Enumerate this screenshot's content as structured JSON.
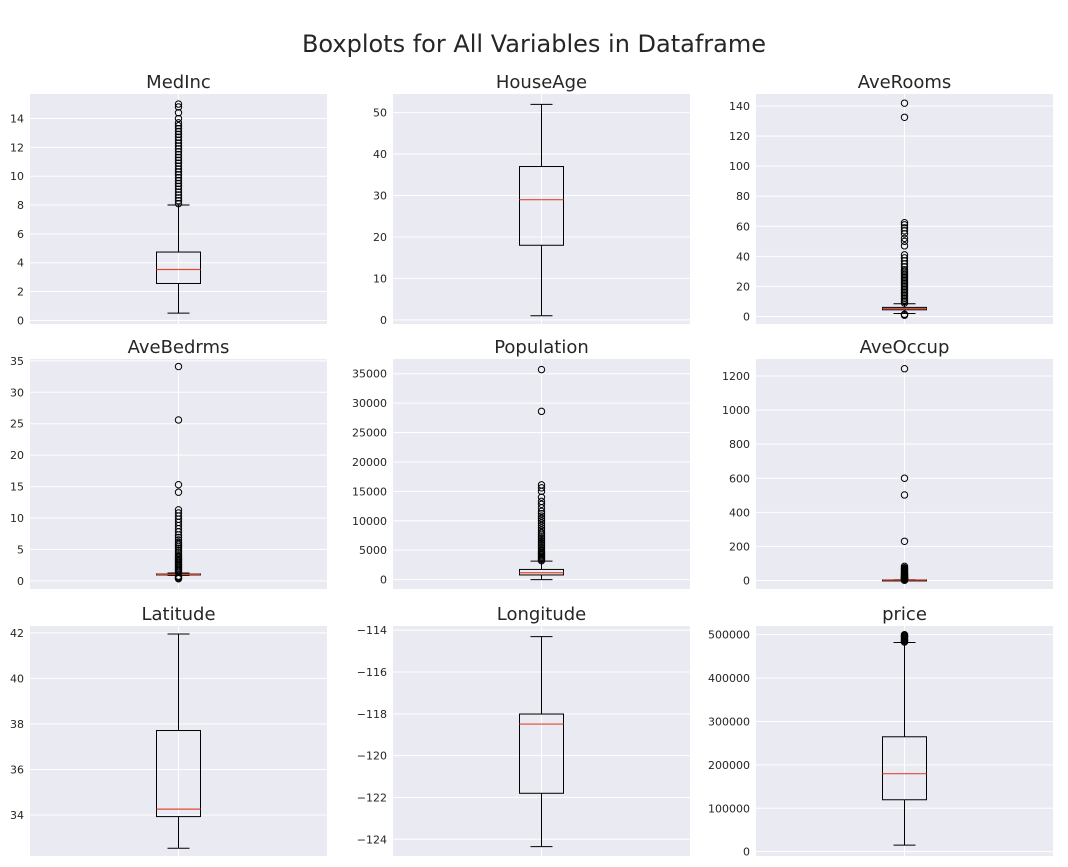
{
  "figure_title": "Boxplots for All Variables in Dataframe",
  "colors": {
    "panel_bg": "#eaeaf2",
    "grid": "#ffffff",
    "box": "#000000",
    "median": "#e24a33"
  },
  "chart_data": [
    {
      "type": "box",
      "title": "MedInc",
      "ylim": [
        -0.25,
        15.7
      ],
      "ticks": [
        0,
        2,
        4,
        6,
        8,
        10,
        12,
        14
      ],
      "tick_labels": [
        "0",
        "2",
        "4",
        "6",
        "8",
        "10",
        "12",
        "14"
      ],
      "whisker_low": 0.5,
      "q1": 2.56,
      "median": 3.53,
      "q3": 4.74,
      "whisker_high": 8.0,
      "outliers": [
        8.1,
        8.3,
        8.5,
        8.7,
        8.9,
        9.1,
        9.3,
        9.5,
        9.7,
        9.9,
        10.1,
        10.3,
        10.5,
        10.7,
        10.9,
        11.1,
        11.3,
        11.5,
        11.7,
        11.9,
        12.1,
        12.3,
        12.5,
        12.7,
        12.9,
        13.1,
        13.3,
        13.5,
        13.7,
        14.0,
        14.4,
        14.8,
        15.0
      ]
    },
    {
      "type": "box",
      "title": "HouseAge",
      "ylim": [
        -1,
        54.5
      ],
      "ticks": [
        0,
        10,
        20,
        30,
        40,
        50
      ],
      "tick_labels": [
        "0",
        "10",
        "20",
        "30",
        "40",
        "50"
      ],
      "whisker_low": 1,
      "q1": 18,
      "median": 29,
      "q3": 37,
      "whisker_high": 52,
      "outliers": []
    },
    {
      "type": "box",
      "title": "AveRooms",
      "ylim": [
        -5,
        148
      ],
      "ticks": [
        0,
        20,
        40,
        60,
        80,
        100,
        120,
        140
      ],
      "tick_labels": [
        "0",
        "20",
        "40",
        "60",
        "80",
        "100",
        "120",
        "140"
      ],
      "whisker_low": 2.0,
      "q1": 4.44,
      "median": 5.23,
      "q3": 6.05,
      "whisker_high": 8.45,
      "outliers": [
        0.85,
        1.13,
        1.5,
        9,
        10,
        11,
        12,
        13,
        14,
        15,
        16,
        17,
        18,
        19,
        20,
        21,
        22,
        23,
        24,
        25,
        26,
        27,
        28,
        29,
        30,
        31,
        33,
        35,
        37,
        39,
        41,
        47,
        50,
        52,
        55,
        57,
        59,
        61,
        62.4,
        132.5,
        141.9
      ]
    },
    {
      "type": "box",
      "title": "AveBedrms",
      "ylim": [
        -1.3,
        35.3
      ],
      "ticks": [
        0,
        5,
        10,
        15,
        20,
        25,
        30,
        35
      ],
      "tick_labels": [
        "0",
        "5",
        "10",
        "15",
        "20",
        "25",
        "30",
        "35"
      ],
      "whisker_low": 0.87,
      "q1": 1.006,
      "median": 1.049,
      "q3": 1.1,
      "whisker_high": 1.24,
      "outliers": [
        0.33,
        0.45,
        0.6,
        0.75,
        1.4,
        1.6,
        1.8,
        2.0,
        2.2,
        2.4,
        2.6,
        2.8,
        3.0,
        3.2,
        3.4,
        3.6,
        3.8,
        4.0,
        4.3,
        4.6,
        4.9,
        5.2,
        5.5,
        5.8,
        6.1,
        6.5,
        6.9,
        7.3,
        7.8,
        8.3,
        8.8,
        9.3,
        9.8,
        10.3,
        10.8,
        11.3,
        14.1,
        15.3,
        25.6,
        34.1
      ]
    },
    {
      "type": "box",
      "title": "Population",
      "ylim": [
        -1600,
        37500
      ],
      "ticks": [
        0,
        5000,
        10000,
        15000,
        20000,
        25000,
        30000,
        35000
      ],
      "tick_labels": [
        "0",
        "5000",
        "10000",
        "15000",
        "20000",
        "25000",
        "30000",
        "35000"
      ],
      "whisker_low": 3,
      "q1": 787,
      "median": 1166,
      "q3": 1725,
      "whisker_high": 3132,
      "outliers": [
        3200,
        3400,
        3600,
        3800,
        4000,
        4200,
        4400,
        4600,
        4800,
        5000,
        5300,
        5600,
        5900,
        6200,
        6500,
        6800,
        7100,
        7400,
        7700,
        8000,
        8400,
        8800,
        9200,
        9600,
        10000,
        10400,
        10800,
        11200,
        11600,
        12200,
        12800,
        13300,
        14000,
        15000,
        15600,
        16100,
        28600,
        35700
      ]
    },
    {
      "type": "box",
      "title": "AveOccup",
      "ylim": [
        -50,
        1300
      ],
      "ticks": [
        0,
        200,
        400,
        600,
        800,
        1000,
        1200
      ],
      "tick_labels": [
        "0",
        "200",
        "400",
        "600",
        "800",
        "1000",
        "1200"
      ],
      "whisker_low": 1.2,
      "q1": 2.43,
      "median": 2.82,
      "q3": 3.28,
      "whisker_high": 4.56,
      "outliers": [
        0.7,
        5,
        7,
        9,
        11,
        13,
        15,
        17,
        19,
        21,
        24,
        27,
        30,
        33,
        36,
        40,
        45,
        50,
        55,
        60,
        65,
        70,
        75,
        83,
        230,
        502,
        600,
        1243
      ]
    },
    {
      "type": "box",
      "title": "Latitude",
      "ylim": [
        32.2,
        42.3
      ],
      "ticks": [
        34,
        36,
        38,
        40,
        42
      ],
      "tick_labels": [
        "34",
        "36",
        "38",
        "40",
        "42"
      ],
      "whisker_low": 32.54,
      "q1": 33.93,
      "median": 34.26,
      "q3": 37.71,
      "whisker_high": 41.95,
      "outliers": []
    },
    {
      "type": "box",
      "title": "Longitude",
      "ylim": [
        -124.8,
        -113.8
      ],
      "ticks": [
        -124,
        -122,
        -120,
        -118,
        -116,
        -114
      ],
      "tick_labels": [
        "−124",
        "−122",
        "−120",
        "−118",
        "−116",
        "−114"
      ],
      "whisker_low": -124.35,
      "q1": -121.8,
      "median": -118.49,
      "q3": -118.01,
      "whisker_high": -114.31,
      "outliers": []
    },
    {
      "type": "box",
      "title": "price",
      "ylim": [
        -10000,
        520000
      ],
      "ticks": [
        0,
        100000,
        200000,
        300000,
        400000,
        500000
      ],
      "tick_labels": [
        "0",
        "100000",
        "200000",
        "300000",
        "400000",
        "500000"
      ],
      "whisker_low": 15000,
      "q1": 119600,
      "median": 179700,
      "q3": 264725,
      "whisker_high": 482000,
      "outliers": [
        483000,
        485000,
        487000,
        489000,
        491000,
        493000,
        495000,
        497000,
        499000,
        500001
      ]
    }
  ]
}
